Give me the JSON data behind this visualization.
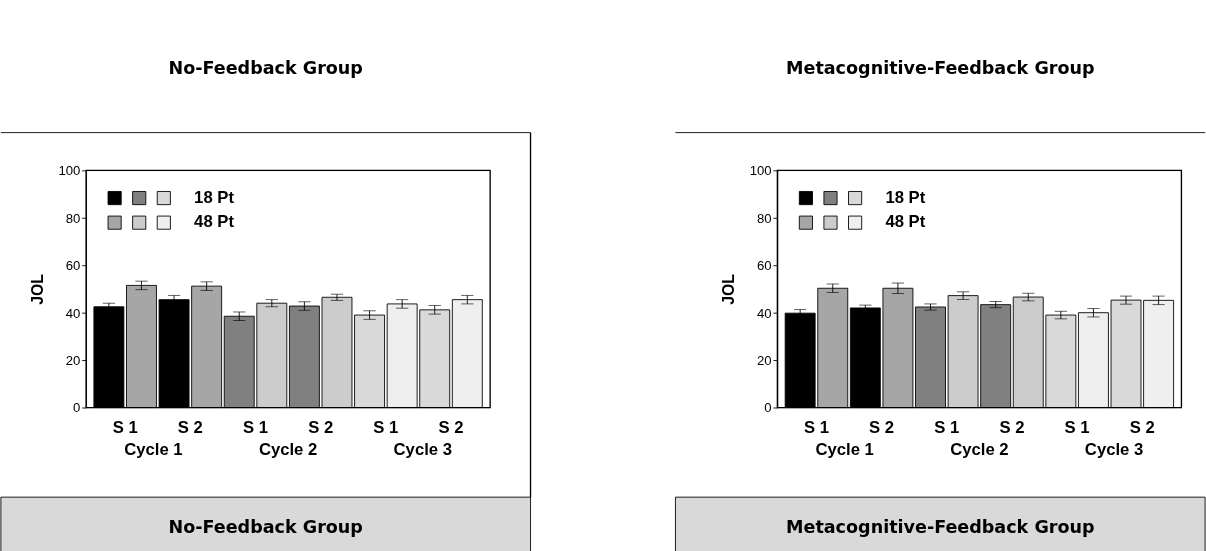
{
  "chart_data": [
    {
      "type": "bar",
      "title": "No-Feedback Group",
      "ylabel": "JOL",
      "categories": [
        "S 1",
        "S 2",
        "S 1",
        "S 2",
        "S 1",
        "S 2"
      ],
      "series": [
        {
          "name": "18 Pt",
          "colors": [
            "#000000",
            "#000000",
            "#808080",
            "#808080",
            "#d9d9d9",
            "#d9d9d9"
          ],
          "values": [
            42.5,
            45.5,
            38.5,
            42.8,
            39,
            41.2
          ],
          "errors": [
            1.5,
            1.8,
            1.8,
            1.8,
            1.8,
            1.8
          ]
        },
        {
          "name": "48 Pt",
          "colors": [
            "#a6a6a6",
            "#a6a6a6",
            "#cccccc",
            "#cccccc",
            "#efefef",
            "#efefef"
          ],
          "values": [
            51.5,
            51.2,
            44,
            46.5,
            43.7,
            45.5
          ],
          "errors": [
            1.8,
            1.8,
            1.5,
            1.3,
            1.8,
            1.8
          ]
        }
      ],
      "ylim": [
        0,
        100
      ],
      "yticks": [
        0,
        20,
        40,
        60,
        80,
        100
      ],
      "legend": "top left",
      "annotations": [
        "Cycle 1",
        "Cycle 2",
        "Cycle 3",
        "No-Feedback Group"
      ]
    },
    {
      "type": "bar",
      "title": "Metacognitive-Feedback Group",
      "ylabel": "JOL",
      "categories": [
        "S 1",
        "S 2",
        "S 1",
        "S 2",
        "S 1",
        "S 2"
      ],
      "series": [
        {
          "name": "18 Pt",
          "colors": [
            "#000000",
            "#000000",
            "#808080",
            "#808080",
            "#d9d9d9",
            "#d9d9d9"
          ],
          "values": [
            39.8,
            42,
            42.4,
            43.4,
            39,
            45.3
          ],
          "errors": [
            1.5,
            1.2,
            1.3,
            1.3,
            1.6,
            1.7
          ]
        },
        {
          "name": "48 Pt",
          "colors": [
            "#a6a6a6",
            "#a6a6a6",
            "#cccccc",
            "#cccccc",
            "#efefef",
            "#efefef"
          ],
          "values": [
            50.3,
            50.3,
            47.2,
            46.6,
            40,
            45.2
          ],
          "errors": [
            1.8,
            2.2,
            1.6,
            1.6,
            1.8,
            1.8
          ]
        }
      ],
      "ylim": [
        0,
        100
      ],
      "yticks": [
        0,
        20,
        40,
        60,
        80,
        100
      ],
      "legend": "top left",
      "annotations": [
        "Cycle 1",
        "Cycle 2",
        "Cycle 3",
        "Metacognitive-Feedback Group"
      ]
    }
  ]
}
